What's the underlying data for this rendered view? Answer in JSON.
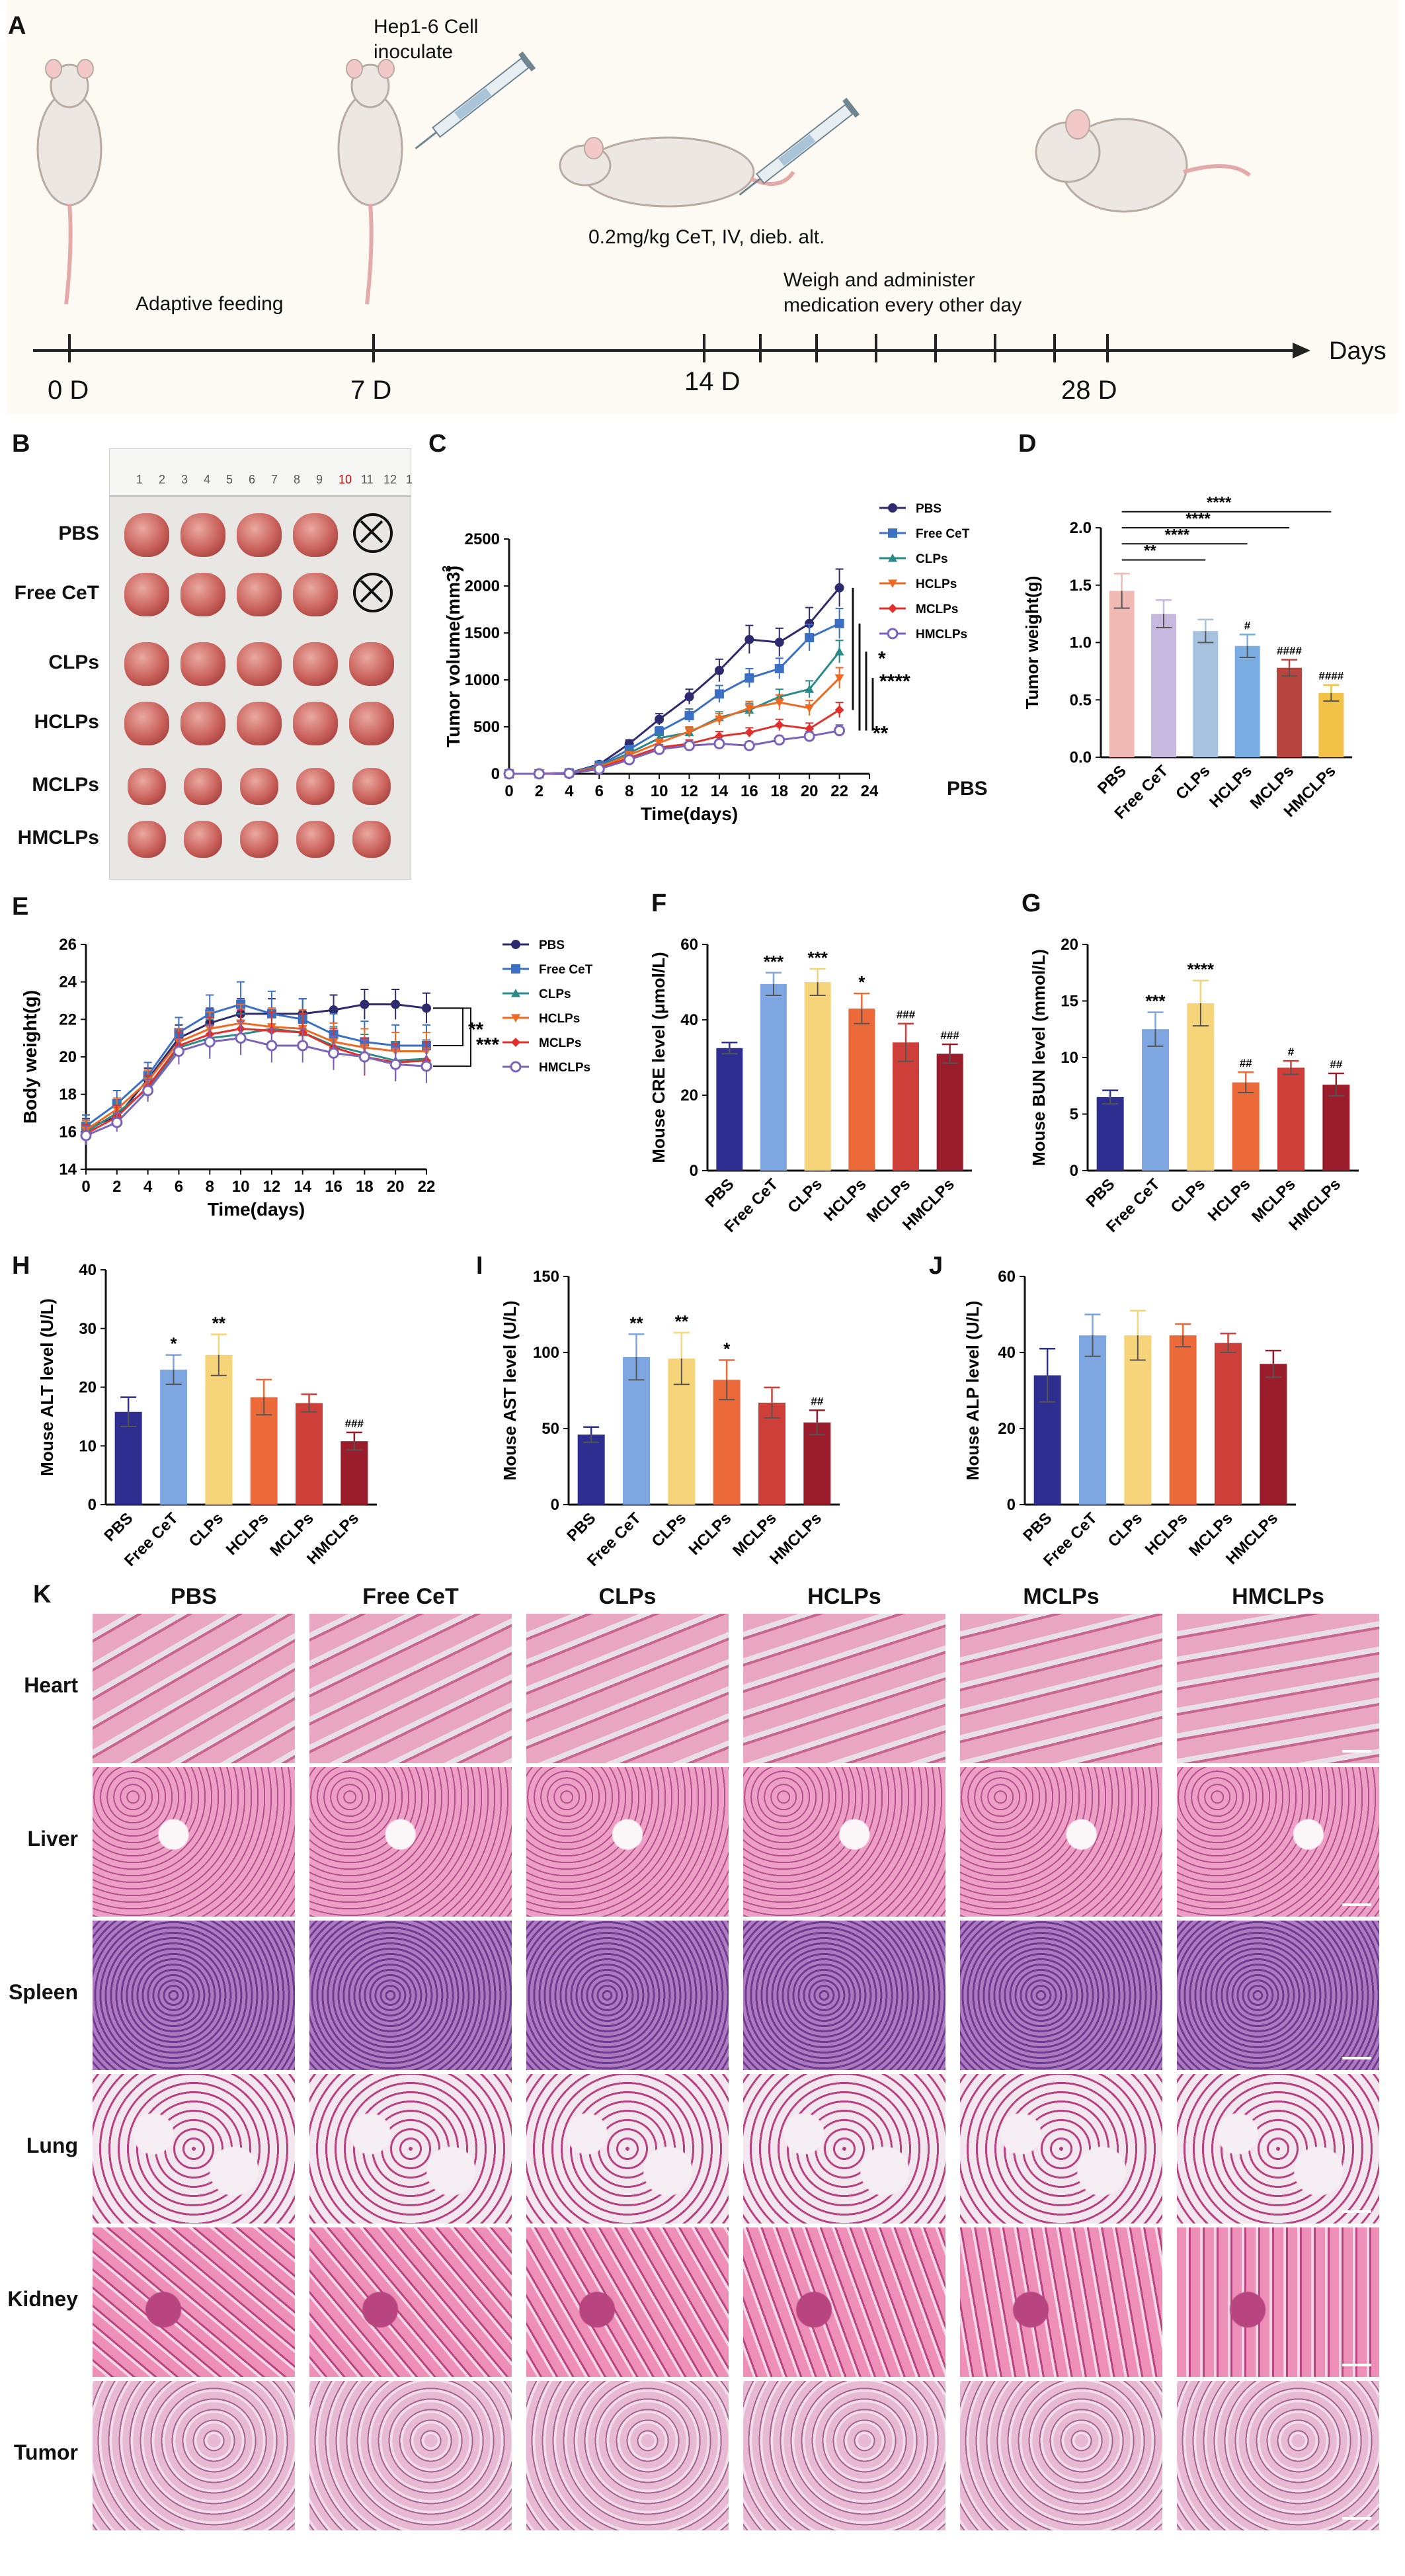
{
  "panel_labels": {
    "A": "A",
    "B": "B",
    "C": "C",
    "D": "D",
    "E": "E",
    "F": "F",
    "G": "G",
    "H": "H",
    "I": "I",
    "J": "J",
    "K": "K"
  },
  "timeline": {
    "inoculate_label": [
      "Hep1-6 Cell",
      "inoculate"
    ],
    "dose_label": "0.2mg/kg CeT, IV, dieb. alt.",
    "weigh_label": [
      "Weigh and administer",
      "medication every other day"
    ],
    "feeding_label": "Adaptive feeding",
    "days_label": "Days",
    "ticks": [
      "0 D",
      "7 D",
      "14 D",
      "28 D"
    ]
  },
  "photo": {
    "row_labels": [
      "PBS",
      "Free CeT",
      "CLPs",
      "HCLPs",
      "MCLPs",
      "HMCLPs"
    ],
    "ruler_numbers": [
      "1",
      "2",
      "3",
      "4",
      "5",
      "6",
      "7",
      "8",
      "9",
      "10",
      "11",
      "12",
      "1"
    ],
    "tumor_counts": [
      4,
      4,
      5,
      5,
      5,
      5
    ]
  },
  "stray_label": "PBS",
  "colors": {
    "PBS": "#2e2a6e",
    "FreeCeT": "#3a6fc4",
    "CLPs": "#2a8a8a",
    "HCLPs": "#ee6a23",
    "MCLPs": "#e0312d",
    "HMCLPs": "#7a63b8",
    "barD": [
      "#f0b9b4",
      "#c6b8de",
      "#a7c2df",
      "#7aaee3",
      "#b8443f",
      "#f1c245"
    ],
    "barBio": [
      "#2d2e8f",
      "#7ea6e0",
      "#f6d57a",
      "#ec6a3a",
      "#cf3f39",
      "#9b1c2b"
    ]
  },
  "chart_data": [
    {
      "id": "C",
      "type": "line",
      "title": "",
      "xlabel": "Time(days)",
      "ylabel": "Tumor volume(mm3)",
      "x": [
        0,
        2,
        4,
        6,
        8,
        10,
        12,
        14,
        16,
        18,
        20,
        22
      ],
      "xlim": [
        0,
        24
      ],
      "ylim": [
        0,
        2500
      ],
      "xticks": [
        "0",
        "2",
        "4",
        "6",
        "8",
        "10",
        "12",
        "14",
        "16",
        "18",
        "20",
        "22",
        "24"
      ],
      "yticks": [
        "0",
        "500",
        "1000",
        "1500",
        "2000",
        "2500"
      ],
      "series": [
        {
          "name": "PBS",
          "values": [
            0,
            0,
            10,
            100,
            320,
            580,
            820,
            1100,
            1430,
            1400,
            1600,
            1980
          ],
          "err": [
            0,
            0,
            5,
            20,
            40,
            60,
            80,
            120,
            150,
            150,
            170,
            200
          ]
        },
        {
          "name": "Free CeT",
          "values": [
            0,
            0,
            10,
            90,
            260,
            450,
            620,
            850,
            1020,
            1120,
            1450,
            1600
          ],
          "err": [
            0,
            0,
            5,
            20,
            40,
            50,
            70,
            90,
            100,
            110,
            140,
            160
          ]
        },
        {
          "name": "CLPs",
          "values": [
            0,
            0,
            8,
            80,
            220,
            380,
            440,
            600,
            680,
            820,
            900,
            1300
          ],
          "err": [
            0,
            0,
            5,
            15,
            30,
            40,
            50,
            60,
            70,
            80,
            90,
            120
          ]
        },
        {
          "name": "HCLPs",
          "values": [
            0,
            0,
            8,
            70,
            200,
            330,
            450,
            580,
            700,
            760,
            700,
            1020
          ],
          "err": [
            0,
            0,
            5,
            15,
            30,
            40,
            50,
            60,
            70,
            80,
            80,
            110
          ]
        },
        {
          "name": "MCLPs",
          "values": [
            0,
            0,
            6,
            60,
            170,
            280,
            320,
            400,
            440,
            520,
            480,
            680
          ],
          "err": [
            0,
            0,
            5,
            10,
            25,
            30,
            40,
            50,
            50,
            60,
            60,
            80
          ]
        },
        {
          "name": "HMCLPs",
          "values": [
            0,
            0,
            5,
            50,
            150,
            260,
            300,
            320,
            300,
            360,
            400,
            460
          ],
          "err": [
            0,
            0,
            5,
            10,
            20,
            30,
            30,
            40,
            40,
            40,
            50,
            60
          ]
        }
      ],
      "annotations": [
        "*",
        "****",
        "**"
      ]
    },
    {
      "id": "D",
      "type": "bar",
      "xlabel": "",
      "ylabel": "Tumor weight(g)",
      "ylim": [
        0,
        2.0
      ],
      "categories": [
        "PBS",
        "Free CeT",
        "CLPs",
        "HCLPs",
        "MCLPs",
        "HMCLPs"
      ],
      "yticks": [
        "0.0",
        "0.5",
        "1.0",
        "1.5",
        "2.0"
      ],
      "values": [
        1.45,
        1.25,
        1.1,
        0.97,
        0.78,
        0.56
      ],
      "err": [
        0.15,
        0.12,
        0.1,
        0.1,
        0.07,
        0.07
      ],
      "marks": [
        "",
        "",
        "",
        "#",
        "####",
        "####"
      ],
      "brackets": [
        "**",
        "****",
        "****",
        "****"
      ]
    },
    {
      "id": "E",
      "type": "line",
      "xlabel": "Time(days)",
      "ylabel": "Body weight(g)",
      "x": [
        0,
        2,
        4,
        6,
        8,
        10,
        12,
        14,
        16,
        18,
        20,
        22
      ],
      "ylim": [
        14,
        26
      ],
      "xticks": [
        "0",
        "2",
        "4",
        "6",
        "8",
        "10",
        "12",
        "14",
        "16",
        "18",
        "20",
        "22"
      ],
      "yticks": [
        "14",
        "16",
        "18",
        "20",
        "22",
        "24",
        "26"
      ],
      "series": [
        {
          "name": "PBS",
          "values": [
            16.2,
            16.8,
            18.8,
            21.0,
            21.8,
            22.3,
            22.3,
            22.3,
            22.5,
            22.8,
            22.8,
            22.6
          ],
          "err": [
            0.5,
            0.6,
            0.6,
            0.7,
            0.8,
            0.8,
            0.8,
            0.8,
            0.8,
            0.8,
            0.8,
            0.8
          ]
        },
        {
          "name": "Free CeT",
          "values": [
            16.3,
            17.5,
            19.0,
            21.3,
            22.3,
            22.8,
            22.3,
            22.0,
            21.2,
            20.8,
            20.6,
            20.6
          ],
          "err": [
            0.6,
            0.7,
            0.7,
            0.8,
            1.0,
            1.2,
            1.2,
            1.1,
            1.1,
            1.1,
            1.1,
            1.1
          ]
        },
        {
          "name": "CLPs",
          "values": [
            16.0,
            17.0,
            18.3,
            20.5,
            21.0,
            21.2,
            21.5,
            21.3,
            20.6,
            20.2,
            19.8,
            19.9
          ],
          "err": [
            0.5,
            0.6,
            0.6,
            0.8,
            1.0,
            1.1,
            1.1,
            1.0,
            1.0,
            1.0,
            1.0,
            1.0
          ]
        },
        {
          "name": "HCLPs",
          "values": [
            16.1,
            17.2,
            18.7,
            20.8,
            21.5,
            21.8,
            21.6,
            21.5,
            20.8,
            20.5,
            20.3,
            20.3
          ],
          "err": [
            0.5,
            0.6,
            0.6,
            0.7,
            0.9,
            1.0,
            1.0,
            1.0,
            1.0,
            1.0,
            1.0,
            1.0
          ]
        },
        {
          "name": "MCLPs",
          "values": [
            15.9,
            16.8,
            18.4,
            20.6,
            21.2,
            21.5,
            21.4,
            21.3,
            20.5,
            20.0,
            19.7,
            19.8
          ],
          "err": [
            0.5,
            0.6,
            0.6,
            0.7,
            0.9,
            1.0,
            1.0,
            1.0,
            1.0,
            1.0,
            1.0,
            1.0
          ]
        },
        {
          "name": "HMCLPs",
          "values": [
            15.8,
            16.5,
            18.2,
            20.3,
            20.8,
            21.0,
            20.6,
            20.6,
            20.2,
            20.0,
            19.6,
            19.5
          ],
          "err": [
            0.5,
            0.5,
            0.6,
            0.7,
            0.9,
            0.9,
            0.9,
            0.9,
            0.9,
            0.9,
            0.9,
            0.9
          ]
        }
      ],
      "annotations": [
        "**",
        "***"
      ]
    },
    {
      "id": "F",
      "type": "bar",
      "ylabel": "Mouse CRE level (μmol/L)",
      "ylim": [
        0,
        60
      ],
      "categories": [
        "PBS",
        "Free CeT",
        "CLPs",
        "HCLPs",
        "MCLPs",
        "HMCLPs"
      ],
      "yticks": [
        "0",
        "20",
        "40",
        "60"
      ],
      "values": [
        32.5,
        49.5,
        50,
        43,
        34,
        31
      ],
      "err": [
        1.5,
        3,
        3.5,
        4,
        5,
        2.5
      ],
      "marks": [
        "",
        "***",
        "***",
        "*",
        "###",
        "###"
      ]
    },
    {
      "id": "G",
      "type": "bar",
      "ylabel": "Mouse BUN level (mmol/L)",
      "ylim": [
        0,
        20
      ],
      "categories": [
        "PBS",
        "Free CeT",
        "CLPs",
        "HCLPs",
        "MCLPs",
        "HMCLPs"
      ],
      "yticks": [
        "0",
        "5",
        "10",
        "15",
        "20"
      ],
      "values": [
        6.5,
        12.5,
        14.8,
        7.8,
        9.1,
        7.6
      ],
      "err": [
        0.6,
        1.5,
        2,
        0.9,
        0.6,
        1.0
      ],
      "marks": [
        "",
        "***",
        "****",
        "##",
        "#",
        "##"
      ]
    },
    {
      "id": "H",
      "type": "bar",
      "ylabel": "Mouse ALT level (U/L)",
      "ylim": [
        0,
        40
      ],
      "categories": [
        "PBS",
        "Free CeT",
        "CLPs",
        "HCLPs",
        "MCLPs",
        "HMCLPs"
      ],
      "yticks": [
        "0",
        "10",
        "20",
        "30",
        "40"
      ],
      "values": [
        15.8,
        23,
        25.5,
        18.3,
        17.3,
        10.8
      ],
      "err": [
        2.5,
        2.5,
        3.5,
        3,
        1.5,
        1.5
      ],
      "marks": [
        "",
        "*",
        "**",
        "",
        "",
        "###"
      ]
    },
    {
      "id": "I",
      "type": "bar",
      "ylabel": "Mouse AST level (U/L)",
      "ylim": [
        0,
        150
      ],
      "categories": [
        "PBS",
        "Free CeT",
        "CLPs",
        "HCLPs",
        "MCLPs",
        "HMCLPs"
      ],
      "yticks": [
        "0",
        "50",
        "100",
        "150"
      ],
      "values": [
        46,
        97,
        96,
        82,
        67,
        54
      ],
      "err": [
        5,
        15,
        17,
        13,
        10,
        8
      ],
      "marks": [
        "",
        "**",
        "**",
        "*",
        "",
        "##"
      ]
    },
    {
      "id": "J",
      "type": "bar",
      "ylabel": "Mouse ALP level (U/L)",
      "ylim": [
        0,
        60
      ],
      "categories": [
        "PBS",
        "Free CeT",
        "CLPs",
        "HCLPs",
        "MCLPs",
        "HMCLPs"
      ],
      "yticks": [
        "0",
        "20",
        "40",
        "60"
      ],
      "values": [
        34,
        44.5,
        44.5,
        44.5,
        42.5,
        37
      ],
      "err": [
        7,
        5.5,
        6.5,
        3,
        2.5,
        3.5
      ],
      "marks": [
        "",
        "",
        "",
        "",
        "",
        ""
      ]
    }
  ],
  "histology": {
    "columns": [
      "PBS",
      "Free CeT",
      "CLPs",
      "HCLPs",
      "MCLPs",
      "HMCLPs"
    ],
    "rows": [
      "Heart",
      "Liver",
      "Spleen",
      "Lung",
      "Kidney",
      "Tumor"
    ]
  }
}
